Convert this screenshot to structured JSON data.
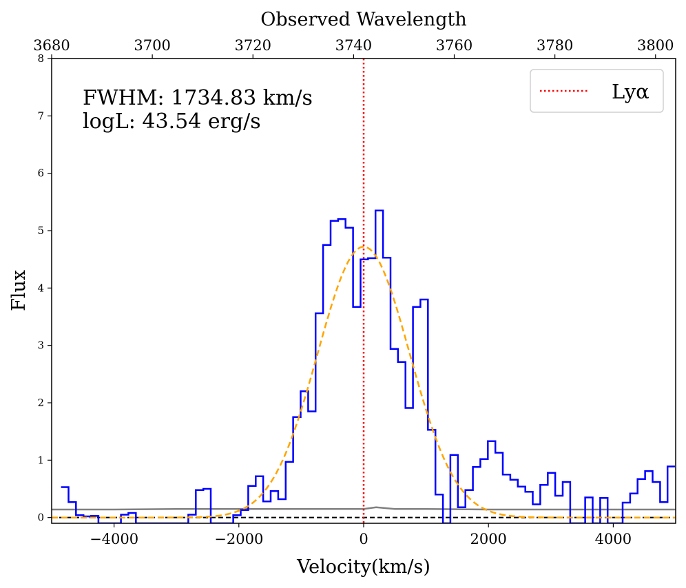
{
  "chart_data": {
    "type": "line",
    "xlabel": "Velocity(km/s)",
    "ylabel": "Flux",
    "top_xlabel": "Observed Wavelength",
    "xlim": [
      -5000,
      5000
    ],
    "ylim": [
      -0.1,
      8
    ],
    "top_xlim": [
      3680,
      3804
    ],
    "x_ticks": [
      -4000,
      -2000,
      0,
      2000,
      4000
    ],
    "x_tick_labels": [
      "−4000",
      "−2000",
      "0",
      "2000",
      "4000"
    ],
    "y_ticks": [
      0,
      1,
      2,
      3,
      4,
      5,
      6,
      7,
      8
    ],
    "y_tick_labels": [
      "0",
      "1",
      "2",
      "3",
      "4",
      "5",
      "6",
      "7",
      "8"
    ],
    "top_ticks": [
      3680,
      3700,
      3720,
      3740,
      3760,
      3780,
      3800
    ],
    "top_tick_labels": [
      "3680",
      "3700",
      "3720",
      "3740",
      "3760",
      "3780",
      "3800"
    ],
    "annotations": [
      "FWHM: 1734.83 km/s",
      "logL: 43.54 erg/s"
    ],
    "legend": {
      "label": "Lyα",
      "position": "upper right"
    },
    "line_center_velocity": 0,
    "series": [
      {
        "name": "flux",
        "style": "steps",
        "color": "#0000ff",
        "x": [
          -4790,
          -4670,
          -4550,
          -4430,
          -4310,
          -4190,
          -4070,
          -3950,
          -3830,
          -3710,
          -3590,
          -3470,
          -3350,
          -3230,
          -3110,
          -2990,
          -2870,
          -2750,
          -2630,
          -2510,
          -2390,
          -2270,
          -2150,
          -2030,
          -1910,
          -1790,
          -1670,
          -1550,
          -1430,
          -1310,
          -1190,
          -1070,
          -950,
          -830,
          -710,
          -590,
          -470,
          -350,
          -230,
          -110,
          10,
          130,
          250,
          370,
          490,
          610,
          730,
          850,
          970,
          1090,
          1210,
          1330,
          1450,
          1570,
          1690,
          1810,
          1930,
          2050,
          2170,
          2290,
          2410,
          2530,
          2650,
          2770,
          2890,
          3010,
          3130,
          3250,
          3370,
          3490,
          3610,
          3730,
          3850,
          3970,
          4090,
          4210,
          4330,
          4450,
          4570,
          4690,
          4810,
          4930
        ],
        "values": [
          0.53,
          0.27,
          0.04,
          0.02,
          0.03,
          -0.1,
          -0.1,
          -0.1,
          0.05,
          0.08,
          -0.1,
          -0.1,
          -0.1,
          -0.1,
          -0.1,
          -0.1,
          -0.1,
          0.05,
          0.48,
          0.5,
          -0.1,
          -0.1,
          -0.1,
          0.04,
          0.13,
          0.55,
          0.72,
          0.28,
          0.46,
          0.32,
          0.97,
          1.75,
          2.2,
          1.85,
          3.56,
          4.75,
          5.17,
          5.2,
          5.05,
          3.67,
          4.5,
          4.52,
          5.35,
          4.53,
          2.94,
          2.71,
          1.91,
          3.67,
          3.8,
          1.53,
          0.4,
          -0.1,
          1.09,
          0.18,
          0.48,
          0.88,
          1.02,
          1.33,
          1.13,
          0.75,
          0.66,
          0.54,
          0.45,
          0.23,
          0.57,
          0.78,
          0.38,
          0.62,
          -0.1,
          -0.1,
          0.35,
          -0.1,
          0.34,
          -0.1,
          -0.1,
          0.26,
          0.42,
          0.67,
          0.81,
          0.62,
          0.27,
          0.89
        ]
      },
      {
        "name": "gaussian fit",
        "style": "dashed",
        "color": "#ffa500",
        "amplitude": 4.72,
        "center": 0,
        "fwhm": 1734.83,
        "x": [
          -5000,
          -3000,
          -2500,
          -2000,
          -1750,
          -1500,
          -1250,
          -1000,
          -750,
          -500,
          -250,
          0,
          250,
          500,
          750,
          1000,
          1250,
          1500,
          1750,
          2000,
          2500,
          3000,
          5000
        ],
        "values": [
          0.0,
          0.0,
          0.0,
          0.1,
          0.2,
          0.45,
          0.97,
          1.76,
          2.8,
          3.75,
          4.45,
          4.72,
          4.45,
          3.75,
          2.8,
          1.76,
          0.97,
          0.45,
          0.2,
          0.1,
          0.0,
          0.0,
          0.0
        ]
      },
      {
        "name": "error",
        "style": "line",
        "color": "#808080",
        "x": [
          -5000,
          -4000,
          -3000,
          -2000,
          -1000,
          -500,
          0,
          200,
          500,
          1000,
          2000,
          3000,
          4000,
          5000
        ],
        "values": [
          0.14,
          0.14,
          0.15,
          0.15,
          0.15,
          0.15,
          0.15,
          0.18,
          0.15,
          0.15,
          0.14,
          0.14,
          0.14,
          0.14
        ]
      }
    ],
    "reference_lines": [
      {
        "name": "zero",
        "orientation": "horizontal",
        "value": 0,
        "color": "#000000",
        "style": "dashed"
      },
      {
        "name": "Lyα",
        "orientation": "vertical",
        "value": 0,
        "color": "#ff0000",
        "style": "dotted"
      }
    ]
  }
}
